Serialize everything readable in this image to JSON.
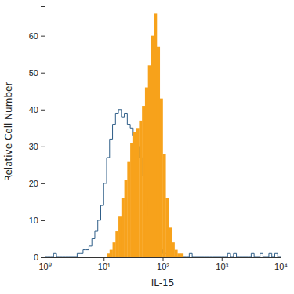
{
  "chart_data": {
    "type": "histogram",
    "x_label": "IL-15",
    "y_label": "Relative Cell Number",
    "log": "x",
    "xlim": [
      1,
      10000
    ],
    "xticks": [
      {
        "value": 1,
        "label": "10⁰"
      },
      {
        "value": 10,
        "label": "10¹"
      },
      {
        "value": 100,
        "label": "10²"
      },
      {
        "value": 1000,
        "label": "10³"
      },
      {
        "value": 10000,
        "label": "10⁴"
      }
    ],
    "ylim": [
      0,
      68
    ],
    "yticks": [
      0,
      10,
      20,
      30,
      40,
      50,
      60
    ],
    "bins": [
      1,
      1.122,
      1.259,
      1.413,
      1.585,
      1.778,
      1.995,
      2.239,
      2.512,
      2.818,
      3.162,
      3.548,
      3.981,
      4.467,
      5.012,
      5.623,
      6.31,
      7.079,
      7.943,
      8.913,
      10,
      11.22,
      12.59,
      14.13,
      15.85,
      17.78,
      19.95,
      22.39,
      25.12,
      28.18,
      31.62,
      35.48,
      39.81,
      44.67,
      50.12,
      56.23,
      63.1,
      70.79,
      79.43,
      89.13,
      100,
      112.2,
      125.9,
      141.3,
      158.5,
      177.8,
      199.5,
      223.9,
      251.2,
      281.8,
      316.2,
      354.8,
      398.1,
      446.7,
      501.2,
      562.3,
      631,
      707.9,
      794.3,
      891.3,
      1000,
      1122,
      1259,
      1413,
      1585,
      1778,
      1995,
      2239,
      2512,
      2818,
      3162,
      3548,
      3981,
      4467,
      5012,
      5623,
      6310,
      7079,
      7943,
      8913,
      10000
    ],
    "series": [
      {
        "type": "step",
        "color": "#2e5d87",
        "values": [
          0,
          0,
          0,
          1,
          0,
          0,
          0,
          0,
          0,
          0,
          0,
          1,
          1,
          2,
          2,
          3,
          5,
          7,
          10,
          14,
          20,
          27,
          32,
          36,
          39,
          40,
          38,
          39,
          36,
          35,
          33,
          30,
          27,
          22,
          16,
          11,
          7,
          5,
          3,
          2,
          1,
          1,
          0,
          0,
          0,
          0,
          0,
          0,
          0,
          1,
          0,
          0,
          0,
          0,
          0,
          0,
          0,
          0,
          0,
          0,
          0,
          0,
          1,
          0,
          1,
          0,
          0,
          0,
          0,
          0,
          1,
          0,
          0,
          1,
          0,
          0,
          1,
          0,
          1,
          0
        ]
      },
      {
        "type": "bar",
        "color": "#f7a21b",
        "values": [
          0,
          0,
          0,
          0,
          0,
          0,
          0,
          0,
          0,
          0,
          0,
          0,
          0,
          0,
          0,
          0,
          0,
          0,
          0,
          0,
          0,
          1,
          2,
          4,
          7,
          11,
          16,
          21,
          26,
          31,
          34,
          35,
          37,
          41,
          46,
          52,
          60,
          66,
          57,
          43,
          28,
          16,
          8,
          4,
          2,
          1,
          1,
          0,
          0,
          0,
          0,
          0,
          0,
          0,
          0,
          0,
          0,
          0,
          0,
          0,
          0,
          0,
          0,
          0,
          0,
          0,
          0,
          0,
          0,
          0,
          0,
          0,
          0,
          0,
          0,
          0,
          0,
          0,
          0,
          0
        ]
      }
    ]
  }
}
